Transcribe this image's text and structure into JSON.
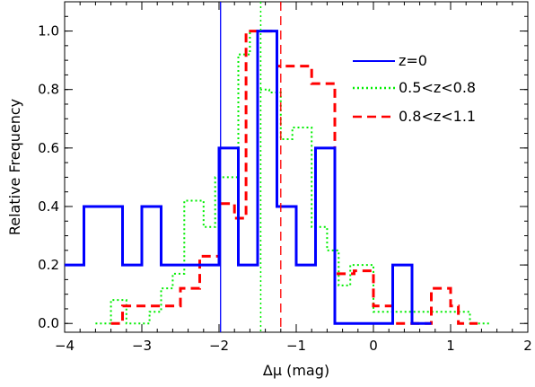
{
  "chart_data": {
    "type": "line",
    "title": "",
    "xlabel": "Δμ (mag)",
    "ylabel": "Relative Frequency",
    "xlim": [
      -4,
      2
    ],
    "ylim": [
      -0.03,
      1.1
    ],
    "xticks": [
      -4,
      -3,
      -2,
      -1,
      0,
      1,
      2
    ],
    "xtick_labels": [
      "−4",
      "−3",
      "−2",
      "−1",
      "0",
      "1",
      "2"
    ],
    "yticks": [
      0.0,
      0.2,
      0.4,
      0.6,
      0.8,
      1.0
    ],
    "ytick_labels": [
      "0.0",
      "0.2",
      "0.4",
      "0.6",
      "0.8",
      "1.0"
    ],
    "legend_position": "top-right",
    "series": [
      {
        "name": "z=0",
        "style": "solid",
        "color": "#0000ff",
        "step_x": [
          -4.0,
          -3.75,
          -3.25,
          -3.0,
          -2.75,
          -2.25,
          -2.0,
          -1.75,
          -1.5,
          -1.25,
          -1.0,
          -0.75,
          -0.5,
          0.25,
          0.5
        ],
        "step_y": [
          0.2,
          0.4,
          0.2,
          0.4,
          0.2,
          0.2,
          0.6,
          0.2,
          1.0,
          0.4,
          0.2,
          0.6,
          0.0,
          0.2,
          0.0
        ],
        "vline": -1.98
      },
      {
        "name": "0.5<z<0.8",
        "style": "dotted",
        "color": "#00ee00",
        "step_x": [
          -3.6,
          -3.4,
          -3.2,
          -2.9,
          -2.75,
          -2.6,
          -2.45,
          -2.2,
          -2.05,
          -1.9,
          -1.75,
          -1.6,
          -1.5,
          -1.35,
          -1.2,
          -1.05,
          -0.8,
          -0.6,
          -0.45,
          -0.3,
          -0.15,
          0.0,
          0.1,
          0.5,
          1.05,
          1.25
        ],
        "step_y": [
          0.0,
          0.08,
          0.0,
          0.04,
          0.12,
          0.17,
          0.42,
          0.33,
          0.5,
          0.5,
          0.92,
          1.0,
          0.8,
          0.79,
          0.63,
          0.67,
          0.33,
          0.25,
          0.13,
          0.2,
          0.2,
          0.04,
          0.04,
          0.04,
          0.04,
          0.0
        ],
        "vline": -1.46
      },
      {
        "name": "0.8<z<1.1",
        "style": "dashed",
        "color": "#ff0000",
        "step_x": [
          -3.4,
          -3.25,
          -2.85,
          -2.5,
          -2.25,
          -2.0,
          -1.8,
          -1.65,
          -1.25,
          -1.0,
          -0.8,
          -0.5,
          -0.25,
          0.0,
          0.15,
          0.25,
          0.55,
          0.75,
          0.9,
          1.0,
          1.1
        ],
        "step_y": [
          0.0,
          0.06,
          0.06,
          0.12,
          0.23,
          0.41,
          0.36,
          1.0,
          0.88,
          0.88,
          0.82,
          0.17,
          0.18,
          0.06,
          0.06,
          0.0,
          0.0,
          0.12,
          0.12,
          0.06,
          0.0
        ],
        "vline": -1.2
      }
    ]
  }
}
